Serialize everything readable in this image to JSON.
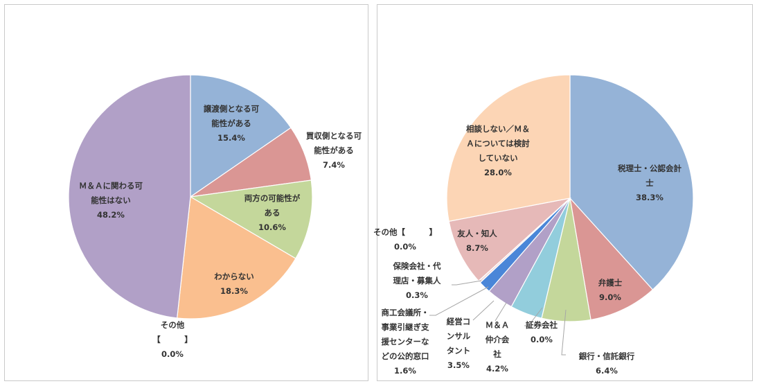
{
  "chart_data": [
    {
      "type": "pie",
      "title": "",
      "start_angle": 0,
      "direction": "clockwise",
      "slices": [
        {
          "label": [
            "譲渡側となる可",
            "能性がある"
          ],
          "value": 15.4,
          "value_label": "15.4%",
          "color": "#95b3d7"
        },
        {
          "label": [
            "買収側となる可",
            "能性がある"
          ],
          "value": 7.4,
          "value_label": "7.4%",
          "color": "#da9694"
        },
        {
          "label": [
            "両方の可能性が",
            "ある"
          ],
          "value": 10.6,
          "value_label": "10.6%",
          "color": "#c4d79b"
        },
        {
          "label": [
            "わからない"
          ],
          "value": 18.3,
          "value_label": "18.3%",
          "color": "#fabf8f"
        },
        {
          "label": [
            "その他",
            "【　　　】"
          ],
          "value": 0.0,
          "value_label": "0.0%",
          "color": "#948a54"
        },
        {
          "label": [
            "Ｍ＆Ａに関わる可",
            "能性はない"
          ],
          "value": 48.2,
          "value_label": "48.2%",
          "color": "#b1a0c7"
        }
      ]
    },
    {
      "type": "pie",
      "title": "",
      "start_angle": 0,
      "direction": "clockwise",
      "slices": [
        {
          "label": [
            "税理士・公認会計",
            "士"
          ],
          "value": 38.3,
          "value_label": "38.3%",
          "color": "#95b3d7"
        },
        {
          "label": [
            "弁護士"
          ],
          "value": 9.0,
          "value_label": "9.0%",
          "color": "#da9694"
        },
        {
          "label": [
            "銀行・信託銀行"
          ],
          "value": 6.4,
          "value_label": "6.4%",
          "color": "#c4d79b"
        },
        {
          "label": [
            "証券会社"
          ],
          "value": 0.0,
          "value_label": "0.0%",
          "color": "#fabf8f"
        },
        {
          "label": [
            "Ｍ＆Ａ",
            "仲介会",
            "社"
          ],
          "value": 4.2,
          "value_label": "4.2%",
          "color": "#92cddc"
        },
        {
          "label": [
            "経営コ",
            "ンサル",
            "タント"
          ],
          "value": 3.5,
          "value_label": "3.5%",
          "color": "#b1a0c7"
        },
        {
          "label": [
            "商工会議所・",
            "事業引継ぎ支",
            "援センターな",
            "どの公的窓口"
          ],
          "value": 1.6,
          "value_label": "1.6%",
          "color": "#4a86d8"
        },
        {
          "label": [
            "保険会社・代",
            "理店・募集人"
          ],
          "value": 0.3,
          "value_label": "0.3%",
          "color": "#f2dcdb"
        },
        {
          "label": [
            "その他【　　　】"
          ],
          "value": 0.0,
          "value_label": "0.0%",
          "color": "#c0c0c0"
        },
        {
          "label": [
            "友人・知人"
          ],
          "value": 8.7,
          "value_label": "8.7%",
          "color": "#e6b9b8"
        },
        {
          "label": [
            "相談しない／Ｍ＆",
            "Ａについては検討",
            "していない"
          ],
          "value": 28.0,
          "value_label": "28.0%",
          "color": "#fcd5b5"
        }
      ]
    }
  ]
}
